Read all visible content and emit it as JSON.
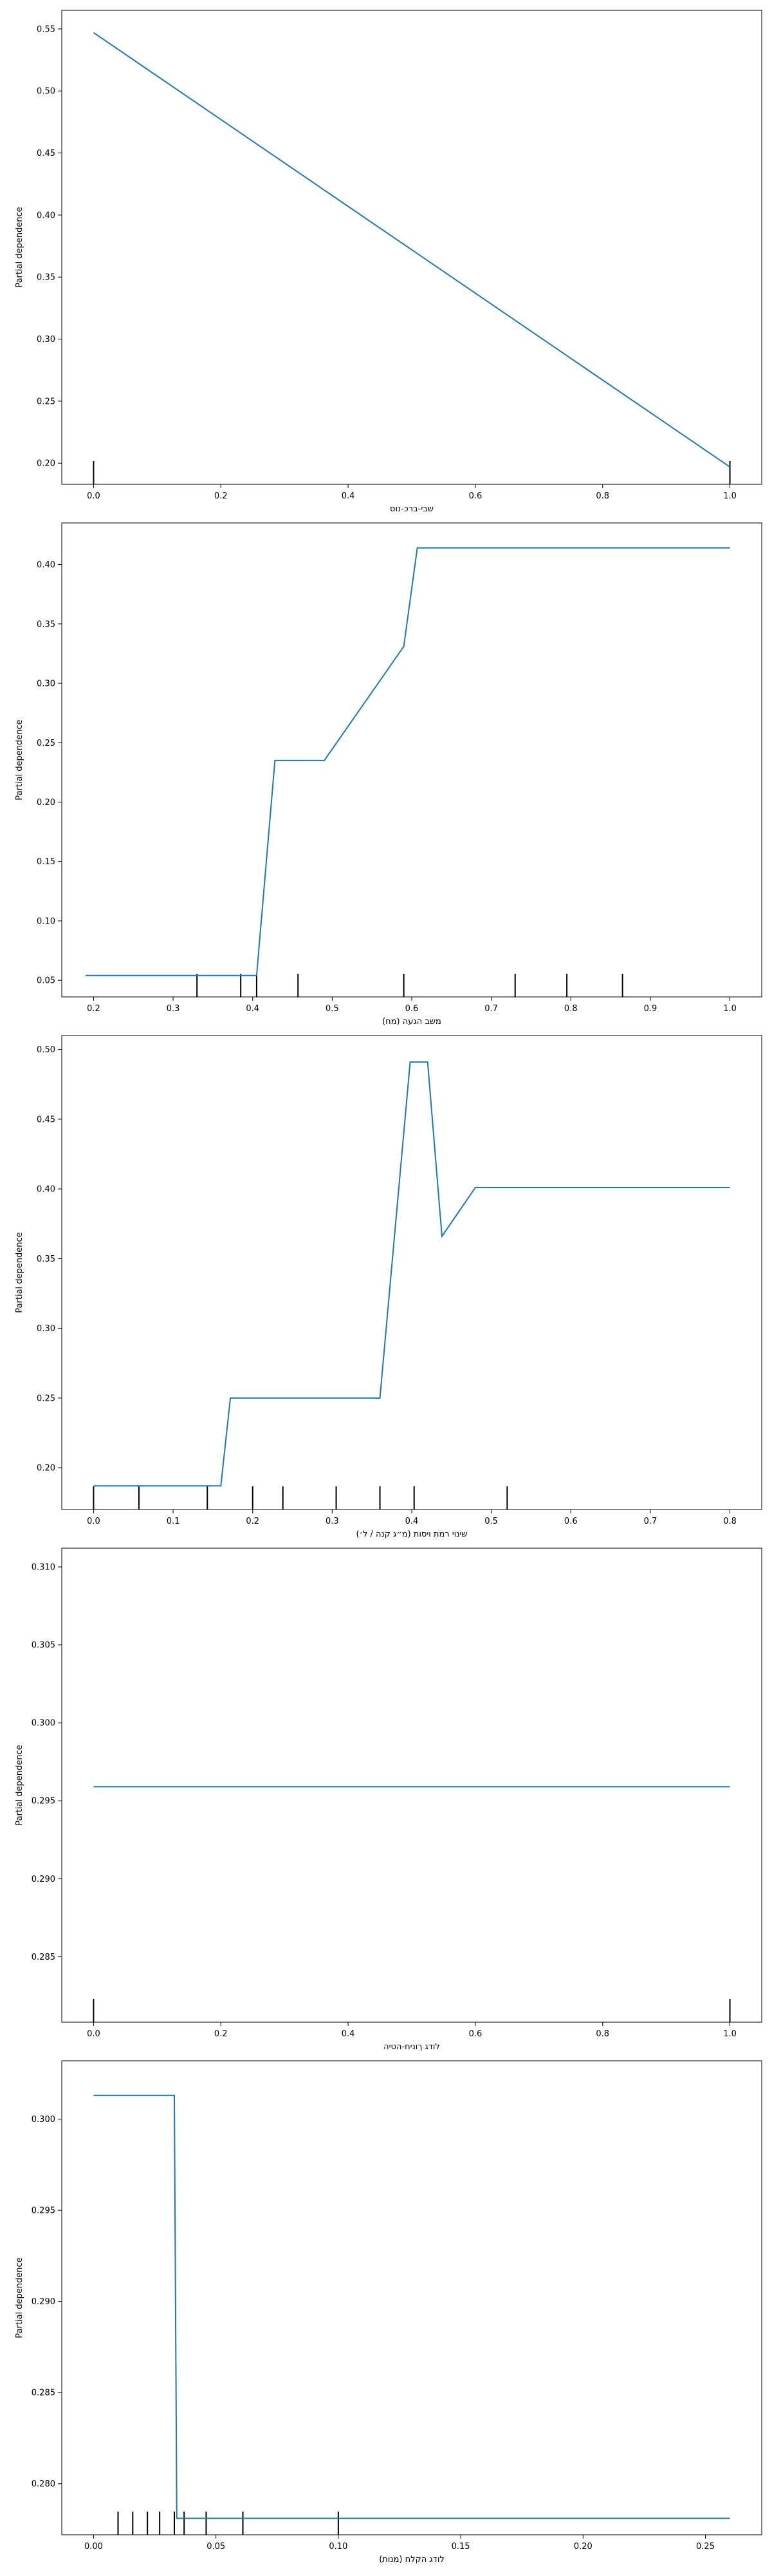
{
  "chart_data": [
    {
      "type": "line",
      "xlabel": "שבי-ברכ-נוס",
      "ylabel": "Partial dependence",
      "xlim": [
        -0.05,
        1.05
      ],
      "ylim": [
        0.183,
        0.565
      ],
      "xticks": [
        0.0,
        0.2,
        0.4,
        0.6,
        0.8,
        1.0
      ],
      "yticks": [
        0.2,
        0.25,
        0.3,
        0.35,
        0.4,
        0.45,
        0.5,
        0.55
      ],
      "xtick_labels": [
        "0.0",
        "0.2",
        "0.4",
        "0.6",
        "0.8",
        "1.0"
      ],
      "ytick_labels": [
        "0.20",
        "0.25",
        "0.30",
        "0.35",
        "0.40",
        "0.45",
        "0.50",
        "0.55"
      ],
      "series": [
        {
          "x": [
            0.0,
            1.0
          ],
          "y": [
            0.547,
            0.197
          ],
          "color": "#1f77b4"
        }
      ],
      "rug": [
        0.0,
        1.0
      ],
      "grid": false
    },
    {
      "type": "line",
      "xlabel": "משב הגעה (מח)",
      "ylabel": "Partial dependence",
      "xlim": [
        0.16,
        1.04
      ],
      "ylim": [
        0.036,
        0.435
      ],
      "xticks": [
        0.2,
        0.3,
        0.4,
        0.5,
        0.6,
        0.7,
        0.8,
        0.9,
        1.0
      ],
      "yticks": [
        0.05,
        0.1,
        0.15,
        0.2,
        0.25,
        0.3,
        0.35,
        0.4
      ],
      "xtick_labels": [
        "0.2",
        "0.3",
        "0.4",
        "0.5",
        "0.6",
        "0.7",
        "0.8",
        "0.9",
        "1.0"
      ],
      "ytick_labels": [
        "0.05",
        "0.10",
        "0.15",
        "0.20",
        "0.25",
        "0.30",
        "0.35",
        "0.40"
      ],
      "series": [
        {
          "x": [
            0.19,
            0.405,
            0.428,
            0.49,
            0.59,
            0.607,
            1.0
          ],
          "y": [
            0.054,
            0.054,
            0.235,
            0.235,
            0.331,
            0.414,
            0.414
          ],
          "color": "#1f77b4"
        }
      ],
      "rug": [
        0.33,
        0.385,
        0.405,
        0.457,
        0.59,
        0.73,
        0.795,
        0.865
      ],
      "grid": false
    },
    {
      "type": "line",
      "xlabel": "שינוי רמת ויסות (מ״ג קנה / ל׳)",
      "ylabel": "Partial dependence",
      "xlim": [
        -0.04,
        0.84
      ],
      "ylim": [
        0.17,
        0.51
      ],
      "xticks": [
        0.0,
        0.1,
        0.2,
        0.3,
        0.4,
        0.5,
        0.6,
        0.7,
        0.8
      ],
      "yticks": [
        0.2,
        0.25,
        0.3,
        0.35,
        0.4,
        0.45,
        0.5
      ],
      "xtick_labels": [
        "0.0",
        "0.1",
        "0.2",
        "0.3",
        "0.4",
        "0.5",
        "0.6",
        "0.7",
        "0.8"
      ],
      "ytick_labels": [
        "0.20",
        "0.25",
        "0.30",
        "0.35",
        "0.40",
        "0.45",
        "0.50"
      ],
      "series": [
        {
          "x": [
            0.0,
            0.16,
            0.172,
            0.36,
            0.398,
            0.42,
            0.438,
            0.48,
            0.8
          ],
          "y": [
            0.187,
            0.187,
            0.25,
            0.25,
            0.491,
            0.491,
            0.366,
            0.401,
            0.401
          ],
          "color": "#1f77b4"
        }
      ],
      "rug": [
        0.0,
        0.057,
        0.143,
        0.2,
        0.238,
        0.305,
        0.36,
        0.403,
        0.52
      ],
      "grid": false
    },
    {
      "type": "line",
      "xlabel": "לודג ךוניח-הטיה",
      "ylabel": "Partial dependence",
      "xlim": [
        -0.05,
        1.05
      ],
      "ylim": [
        0.2808,
        0.3112
      ],
      "xticks": [
        0.0,
        0.2,
        0.4,
        0.6,
        0.8,
        1.0
      ],
      "yticks": [
        0.285,
        0.29,
        0.295,
        0.3,
        0.305,
        0.31
      ],
      "xtick_labels": [
        "0.0",
        "0.2",
        "0.4",
        "0.6",
        "0.8",
        "1.0"
      ],
      "ytick_labels": [
        "0.285",
        "0.290",
        "0.295",
        "0.300",
        "0.305",
        "0.310"
      ],
      "series": [
        {
          "x": [
            0.0,
            1.0
          ],
          "y": [
            0.2959,
            0.2959
          ],
          "color": "#1f77b4"
        }
      ],
      "rug": [
        0.0,
        1.0
      ],
      "grid": false
    },
    {
      "type": "line",
      "xlabel": "לודג הקלח (מנות)",
      "ylabel": "Partial dependence",
      "xlim": [
        -0.013,
        0.273
      ],
      "ylim": [
        0.2772,
        0.3032
      ],
      "xticks": [
        0.0,
        0.05,
        0.1,
        0.15,
        0.2,
        0.25
      ],
      "yticks": [
        0.28,
        0.285,
        0.29,
        0.295,
        0.3
      ],
      "xtick_labels": [
        "0.00",
        "0.05",
        "0.10",
        "0.15",
        "0.20",
        "0.25"
      ],
      "ytick_labels": [
        "0.280",
        "0.285",
        "0.290",
        "0.295",
        "0.300"
      ],
      "series": [
        {
          "x": [
            0.0,
            0.033,
            0.034,
            0.26
          ],
          "y": [
            0.3013,
            0.3013,
            0.2781,
            0.2781
          ],
          "color": "#1f77b4"
        }
      ],
      "rug": [
        0.01,
        0.016,
        0.022,
        0.027,
        0.033,
        0.037,
        0.046,
        0.061,
        0.1
      ],
      "grid": false
    }
  ]
}
